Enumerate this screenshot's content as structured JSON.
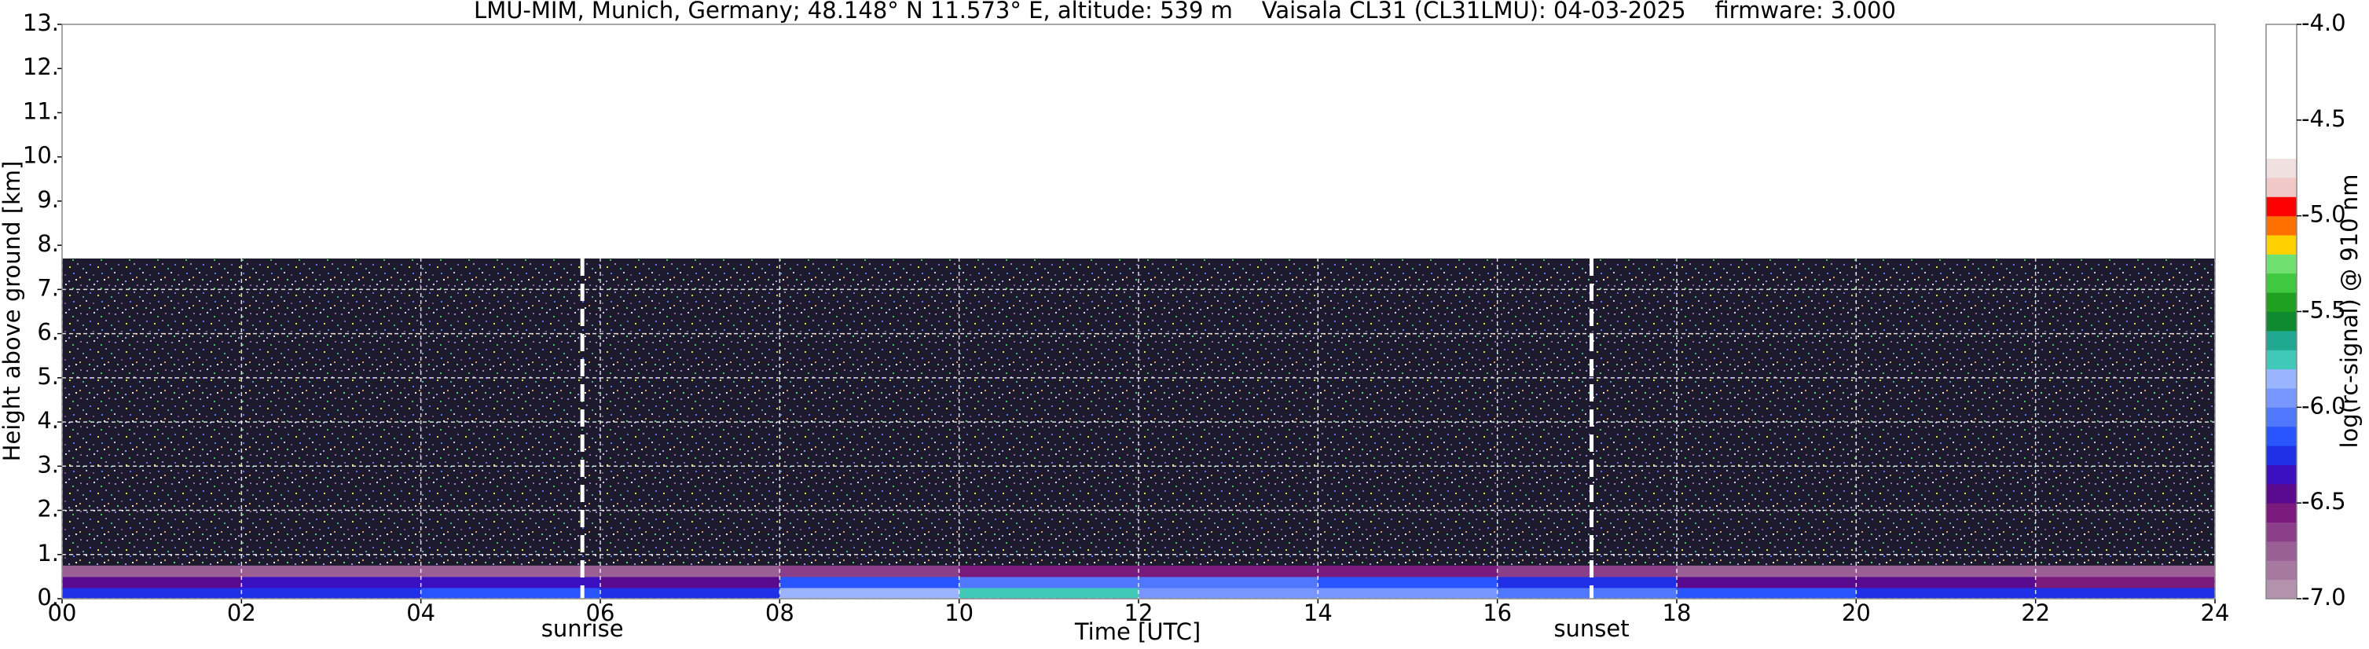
{
  "chart_data": {
    "type": "heatmap",
    "title": "LMU-MIM, Munich, Germany; 48.148° N 11.573° E, altitude: 539 m    Vaisala CL31 (CL31LMU): 04-03-2025    firmware: 3.000",
    "x_label": "Time [UTC]",
    "y_label": "Height above ground [km]",
    "colorbar_label": "log(rc-signal) @ 910 nm",
    "xlim": [
      0,
      24
    ],
    "xticks": [
      {
        "value": 0,
        "label": "00"
      },
      {
        "value": 2,
        "label": "02"
      },
      {
        "value": 4,
        "label": "04"
      },
      {
        "value": 6,
        "label": "06"
      },
      {
        "value": 8,
        "label": "08"
      },
      {
        "value": 10,
        "label": "10"
      },
      {
        "value": 12,
        "label": "12"
      },
      {
        "value": 14,
        "label": "14"
      },
      {
        "value": 16,
        "label": "16"
      },
      {
        "value": 18,
        "label": "18"
      },
      {
        "value": 20,
        "label": "20"
      },
      {
        "value": 22,
        "label": "22"
      },
      {
        "value": 24,
        "label": "24"
      }
    ],
    "ylim": [
      0,
      13
    ],
    "yticks": [
      {
        "value": 0,
        "label": "0."
      },
      {
        "value": 1,
        "label": "1."
      },
      {
        "value": 2,
        "label": "2."
      },
      {
        "value": 3,
        "label": "3."
      },
      {
        "value": 4,
        "label": "4."
      },
      {
        "value": 5,
        "label": "5."
      },
      {
        "value": 6,
        "label": "6."
      },
      {
        "value": 7,
        "label": "7."
      },
      {
        "value": 8,
        "label": "8."
      },
      {
        "value": 9,
        "label": "9."
      },
      {
        "value": 10,
        "label": "10."
      },
      {
        "value": 11,
        "label": "11."
      },
      {
        "value": 12,
        "label": "12."
      },
      {
        "value": 13,
        "label": "13."
      }
    ],
    "grid": true,
    "x_edges": [
      0,
      2,
      4,
      6,
      8,
      10,
      12,
      14,
      16,
      18,
      20,
      22,
      24
    ],
    "y_edges": [
      0,
      0.25,
      0.5,
      0.75
    ],
    "values": [
      [
        -6.3,
        -6.3,
        -6.2,
        -6.3,
        -5.9,
        -5.8,
        -6.0,
        -6.0,
        -6.1,
        -6.2,
        -6.3,
        -6.3
      ],
      [
        -6.5,
        -6.4,
        -6.4,
        -6.5,
        -6.2,
        -6.1,
        -6.1,
        -6.2,
        -6.3,
        -6.5,
        -6.5,
        -6.6
      ],
      [
        -6.8,
        -6.8,
        -6.8,
        -6.8,
        -6.7,
        -6.6,
        -6.6,
        -6.6,
        -6.7,
        -6.8,
        -6.8,
        -6.8
      ]
    ],
    "noise_top": 7.7,
    "clim": [
      -7,
      -4
    ],
    "cticks": [
      {
        "value": -7,
        "label": "-7.0"
      },
      {
        "value": -6.5,
        "label": "-6.5"
      },
      {
        "value": -6,
        "label": "-6.0"
      },
      {
        "value": -5.5,
        "label": "-5.5"
      },
      {
        "value": -5,
        "label": "-5.0"
      },
      {
        "value": -4.5,
        "label": "-4.5"
      },
      {
        "value": -4,
        "label": "-4.0"
      }
    ],
    "colors": [
      "#b392ad",
      "#a679a0",
      "#9a5f95",
      "#8c3f89",
      "#7a1a7d",
      "#5a0a8e",
      "#3a10c0",
      "#1f30e8",
      "#2855ff",
      "#5078ff",
      "#7896ff",
      "#9ab4ff",
      "#40c8b8",
      "#20a890",
      "#108a30",
      "#20a020",
      "#40c840",
      "#70e070",
      "#ffd000",
      "#ff7000",
      "#ff0000",
      "#f0c8c8",
      "#f0e0e0",
      "#ffffff",
      "#ffffff",
      "#ffffff",
      "#ffffff",
      "#ffffff",
      "#ffffff",
      "#ffffff"
    ],
    "events": [
      {
        "label": "sunrise",
        "x": 5.8
      },
      {
        "label": "sunset",
        "x": 17.05
      }
    ]
  }
}
